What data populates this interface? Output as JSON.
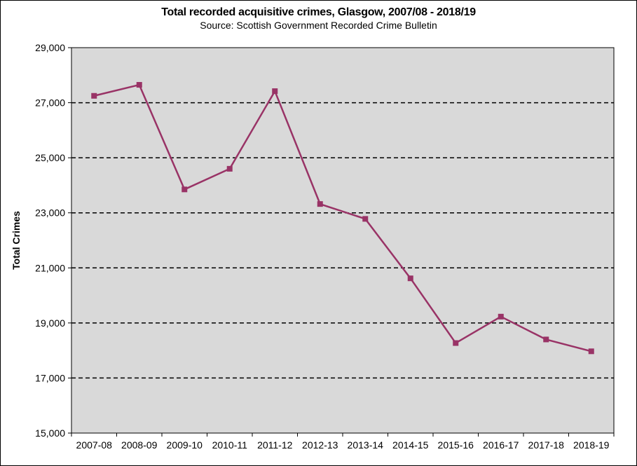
{
  "chart_data": {
    "type": "line",
    "title": "Total recorded acquisitive crimes, Glasgow, 2007/08 - 2018/19",
    "subtitle": "Source:  Scottish Government  Recorded Crime Bulletin",
    "xlabel": "",
    "ylabel": "Total Crimes",
    "categories": [
      "2007-08",
      "2008-09",
      "2009-10",
      "2010-11",
      "2011-12",
      "2012-13",
      "2013-14",
      "2014-15",
      "2015-16",
      "2016-17",
      "2017-18",
      "2018-19"
    ],
    "series": [
      {
        "values": [
          27250,
          27650,
          23850,
          24600,
          27420,
          23320,
          22780,
          20620,
          18270,
          19230,
          18400,
          17970
        ]
      }
    ],
    "ylim": [
      15000,
      29000
    ],
    "yticks": [
      15000,
      17000,
      19000,
      21000,
      23000,
      25000,
      27000,
      29000
    ],
    "ytick_labels": [
      "15,000",
      "17,000",
      "19,000",
      "21,000",
      "23,000",
      "25,000",
      "27,000",
      "29,000"
    ],
    "grid": "horizontal dashed",
    "colors": {
      "plot_background": "#d9d9d9",
      "line": "#993366",
      "grid": "#000000"
    }
  }
}
